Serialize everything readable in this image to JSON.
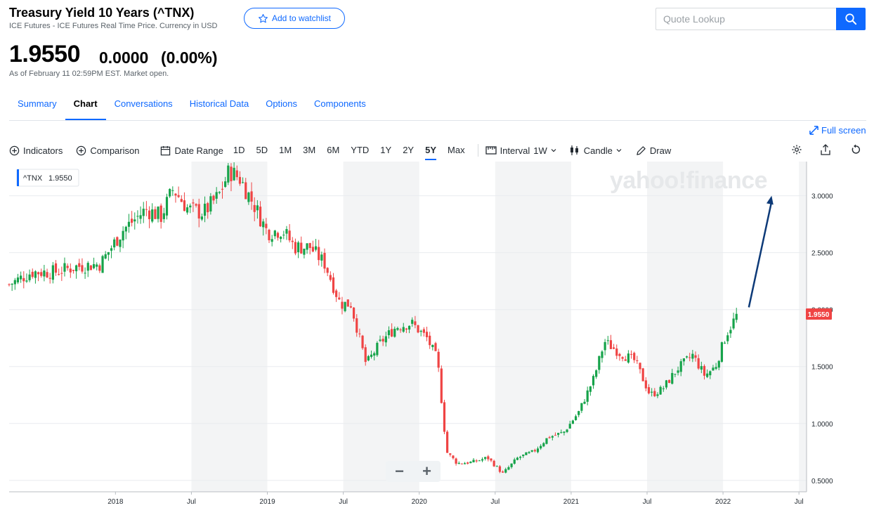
{
  "quote": {
    "title": "Treasury Yield 10 Years (^TNX)",
    "subtitle": "ICE Futures - ICE Futures Real Time Price. Currency in USD",
    "watchlist_label": "Add to watchlist",
    "price": "1.9550",
    "change": "0.0000",
    "change_pct": "(0.00%)",
    "as_of": "As of February 11 02:59PM EST. Market open."
  },
  "search": {
    "placeholder": "Quote Lookup"
  },
  "tabs": [
    {
      "label": "Summary"
    },
    {
      "label": "Chart",
      "active": true
    },
    {
      "label": "Conversations"
    },
    {
      "label": "Historical Data"
    },
    {
      "label": "Options"
    },
    {
      "label": "Components"
    }
  ],
  "fullscreen_label": "Full screen",
  "toolbar": {
    "indicators": "Indicators",
    "comparison": "Comparison",
    "date_range": "Date Range",
    "ranges": [
      "1D",
      "5D",
      "1M",
      "3M",
      "6M",
      "YTD",
      "1Y",
      "2Y",
      "5Y",
      "Max"
    ],
    "active_range": "5Y",
    "interval_label": "Interval",
    "interval_value": "1W",
    "chart_type": "Candle",
    "draw": "Draw"
  },
  "colors": {
    "accent": "#0f69ff",
    "up": "#16a34a",
    "down": "#ef4444",
    "arrow": "#0d3a78"
  },
  "zoom": {
    "minus": "−",
    "plus": "+"
  },
  "chart_data": {
    "type": "candlestick",
    "symbol_tag": "^TNX",
    "last_value": "1.9550",
    "watermark": "yahoo!finance",
    "ylim": [
      0.4,
      3.3
    ],
    "y_ticks": [
      "3.0000",
      "2.5000",
      "2.0000",
      "1.5000",
      "1.0000",
      "0.5000"
    ],
    "y_tick_values": [
      3.0,
      2.5,
      2.0,
      1.5,
      1.0,
      0.5
    ],
    "x_ticks": [
      "2018",
      "Jul",
      "2019",
      "Jul",
      "2020",
      "Jul",
      "2021",
      "Jul",
      "2022",
      "Jul"
    ],
    "x_tick_dates": [
      2018.0,
      2018.5,
      2019.0,
      2019.5,
      2020.0,
      2020.5,
      2021.0,
      2021.5,
      2022.0,
      2022.5
    ],
    "x_range": [
      2017.3,
      2022.55
    ],
    "grid": true,
    "shaded_half_years": true,
    "trend_arrow": {
      "from": [
        2022.17,
        2.02
      ],
      "to": [
        2022.32,
        3.0
      ]
    },
    "close_series": [
      {
        "date": 2017.3,
        "value": 2.22
      },
      {
        "date": 2017.45,
        "value": 2.33
      },
      {
        "date": 2017.6,
        "value": 2.33
      },
      {
        "date": 2017.75,
        "value": 2.38
      },
      {
        "date": 2017.9,
        "value": 2.4
      },
      {
        "date": 2018.05,
        "value": 2.7
      },
      {
        "date": 2018.2,
        "value": 2.88
      },
      {
        "date": 2018.3,
        "value": 2.82
      },
      {
        "date": 2018.38,
        "value": 3.06
      },
      {
        "date": 2018.48,
        "value": 2.88
      },
      {
        "date": 2018.58,
        "value": 2.85
      },
      {
        "date": 2018.68,
        "value": 3.0
      },
      {
        "date": 2018.75,
        "value": 3.22
      },
      {
        "date": 2018.82,
        "value": 3.15
      },
      {
        "date": 2018.92,
        "value": 2.9
      },
      {
        "date": 2019.0,
        "value": 2.68
      },
      {
        "date": 2019.1,
        "value": 2.7
      },
      {
        "date": 2019.18,
        "value": 2.55
      },
      {
        "date": 2019.28,
        "value": 2.55
      },
      {
        "date": 2019.38,
        "value": 2.4
      },
      {
        "date": 2019.48,
        "value": 2.05
      },
      {
        "date": 2019.55,
        "value": 2.05
      },
      {
        "date": 2019.65,
        "value": 1.52
      },
      {
        "date": 2019.75,
        "value": 1.72
      },
      {
        "date": 2019.85,
        "value": 1.85
      },
      {
        "date": 2019.95,
        "value": 1.88
      },
      {
        "date": 2020.05,
        "value": 1.75
      },
      {
        "date": 2020.12,
        "value": 1.56
      },
      {
        "date": 2020.18,
        "value": 0.75
      },
      {
        "date": 2020.25,
        "value": 0.65
      },
      {
        "date": 2020.35,
        "value": 0.66
      },
      {
        "date": 2020.45,
        "value": 0.7
      },
      {
        "date": 2020.55,
        "value": 0.56
      },
      {
        "date": 2020.65,
        "value": 0.7
      },
      {
        "date": 2020.75,
        "value": 0.75
      },
      {
        "date": 2020.85,
        "value": 0.88
      },
      {
        "date": 2020.95,
        "value": 0.92
      },
      {
        "date": 2021.05,
        "value": 1.1
      },
      {
        "date": 2021.15,
        "value": 1.4
      },
      {
        "date": 2021.22,
        "value": 1.72
      },
      {
        "date": 2021.32,
        "value": 1.62
      },
      {
        "date": 2021.42,
        "value": 1.55
      },
      {
        "date": 2021.52,
        "value": 1.25
      },
      {
        "date": 2021.6,
        "value": 1.3
      },
      {
        "date": 2021.7,
        "value": 1.48
      },
      {
        "date": 2021.8,
        "value": 1.6
      },
      {
        "date": 2021.88,
        "value": 1.42
      },
      {
        "date": 2021.95,
        "value": 1.5
      },
      {
        "date": 2022.02,
        "value": 1.78
      },
      {
        "date": 2022.09,
        "value": 1.95
      }
    ]
  }
}
